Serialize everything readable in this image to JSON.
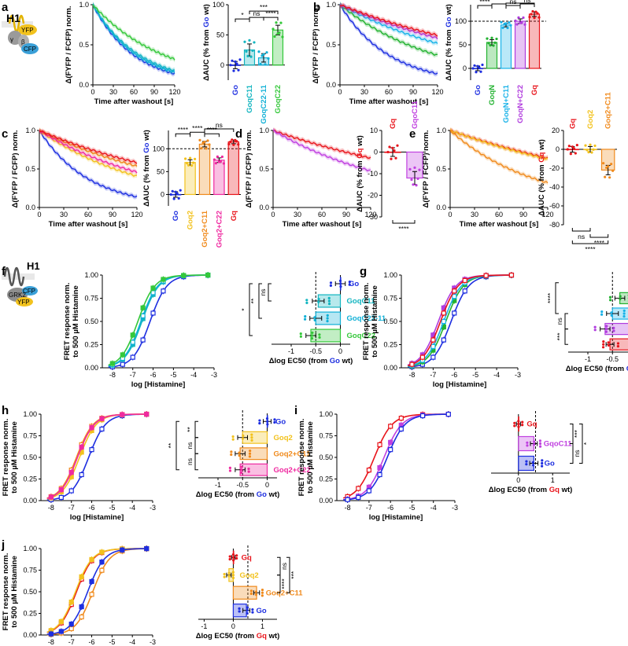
{
  "colors": {
    "Go": "#1d2ee0",
    "Gq": "#e8141b",
    "GoqN": "#22b230",
    "GoqC11": "#12b5c0",
    "GoqC22-11": "#0fb0d6",
    "GoqC22": "#34c83a",
    "GoqN+C11": "#18b2e8",
    "GoqN+C22": "#b03cde",
    "Goq2": "#f2c21d",
    "Goq2+C11": "#f08a1c",
    "Goq2+C22": "#ef2aa0",
    "GqoC11": "#c040e0"
  },
  "labels": {
    "time_xlabel": "Time after washout [s]",
    "fret_ylabel": "Δ(FYFP / FCFP) norm.",
    "auc_go": "ΔAUC (% from Go wt)",
    "auc_gq": "ΔAUC (% from Gq wt)",
    "dose_ylabel_1": "FRET response norm.",
    "dose_ylabel_2": "to 500 µM Histamine",
    "dose_xlabel": "log [Histamine]",
    "ec50_go": "Δlog EC50 (from Go wt)",
    "ec50_gq": "Δlog EC50 (from Gq wt)",
    "schematic_a": [
      "H1",
      "YFP",
      "β",
      "γ",
      "CFP"
    ],
    "schematic_f": [
      "H1",
      "GRK2",
      "YFP",
      "CFP"
    ]
  },
  "chart_data": [
    {
      "panel": "a",
      "type": "line",
      "xlabel": "Time after washout [s]",
      "ylabel": "Δ(FYFP / FCFP) norm.",
      "xlim": [
        0,
        120
      ],
      "ylim": [
        0,
        1.0
      ],
      "xticks": [
        0,
        30,
        60,
        90,
        120
      ],
      "yticks": [
        0.0,
        0.5,
        1.0
      ],
      "series": [
        {
          "name": "Go",
          "k": 0.0165
        },
        {
          "name": "GoqC11",
          "k": 0.0145
        },
        {
          "name": "GoqC22-11",
          "k": 0.0155
        },
        {
          "name": "GoqC22",
          "k": 0.0095
        }
      ]
    },
    {
      "panel": "a",
      "type": "bar",
      "ylabel": "ΔAUC (% from Go wt)",
      "ylim": [
        -25,
        100
      ],
      "yticks": [
        0,
        50,
        100
      ],
      "categories": [
        "Go",
        "GoqC11",
        "GoqC22-11",
        "GoqC22"
      ],
      "values": [
        0,
        25,
        12,
        58
      ],
      "errors": [
        6,
        10,
        7,
        8
      ],
      "brackets": [
        {
          "from": 0,
          "to": 1,
          "text": "*"
        },
        {
          "from": 1,
          "to": 2,
          "text": "ns"
        },
        {
          "from": 1,
          "to": 3,
          "text": "***"
        },
        {
          "from": 2,
          "to": 3,
          "text": "****"
        }
      ]
    },
    {
      "panel": "b",
      "type": "line",
      "xlabel": "Time after washout [s]",
      "ylabel": "Δ(FYFP / FCFP) norm.",
      "xlim": [
        0,
        120
      ],
      "ylim": [
        0,
        1.0
      ],
      "xticks": [
        0,
        30,
        60,
        90,
        120
      ],
      "yticks": [
        0.0,
        0.5,
        1.0
      ],
      "series": [
        {
          "name": "Go",
          "k": 0.0165
        },
        {
          "name": "GoqN",
          "k": 0.0083
        },
        {
          "name": "GoqN+C11",
          "k": 0.0055
        },
        {
          "name": "GoqN+C22",
          "k": 0.0045
        },
        {
          "name": "Gq",
          "k": 0.004
        }
      ]
    },
    {
      "panel": "b",
      "type": "bar",
      "ylabel": "ΔAUC (% from Go wt)",
      "ylim": [
        -25,
        135
      ],
      "yticks": [
        0,
        50,
        100
      ],
      "dashed": 100,
      "categories": [
        "Go",
        "GoqN",
        "GoqN+C11",
        "GoqN+C22",
        "Gq"
      ],
      "values": [
        0,
        55,
        92,
        100,
        115
      ],
      "errors": [
        5,
        6,
        4,
        5,
        5
      ],
      "brackets": [
        {
          "from": 0,
          "to": 1,
          "text": "****"
        },
        {
          "from": 1,
          "to": 2,
          "text": "****"
        },
        {
          "from": 2,
          "to": 3,
          "text": "ns"
        },
        {
          "from": 3,
          "to": 4,
          "text": "ns"
        },
        {
          "from": 2,
          "to": 4,
          "text": "***"
        }
      ]
    },
    {
      "panel": "c",
      "type": "line",
      "xlabel": "Time after washout [s]",
      "ylabel": "Δ(FYFP / FCFP) norm.",
      "xlim": [
        0,
        120
      ],
      "ylim": [
        0,
        1.0
      ],
      "xticks": [
        0,
        30,
        60,
        90,
        120
      ],
      "yticks": [
        0.0,
        0.5,
        1.0
      ],
      "series": [
        {
          "name": "Go",
          "k": 0.0165
        },
        {
          "name": "Goq2",
          "k": 0.0075
        },
        {
          "name": "Goq2+C11",
          "k": 0.0052
        },
        {
          "name": "Goq2+C22",
          "k": 0.0065
        },
        {
          "name": "Gq",
          "k": 0.0045
        }
      ]
    },
    {
      "panel": "c",
      "type": "bar",
      "ylabel": "ΔAUC (% from Go wt)",
      "ylim": [
        -25,
        140
      ],
      "yticks": [
        0,
        50,
        100
      ],
      "dashed": 100,
      "categories": [
        "Go",
        "Goq2",
        "Goq2+C11",
        "Goq2+C22",
        "Gq"
      ],
      "values": [
        0,
        70,
        110,
        75,
        115
      ],
      "errors": [
        6,
        6,
        6,
        5,
        4
      ],
      "brackets": [
        {
          "from": 0,
          "to": 1,
          "text": "****"
        },
        {
          "from": 1,
          "to": 2,
          "text": "****"
        },
        {
          "from": 2,
          "to": 3,
          "text": "****"
        },
        {
          "from": 2,
          "to": 4,
          "text": "ns"
        }
      ]
    },
    {
      "panel": "d",
      "type": "line",
      "xlabel": "Time after washout [s]",
      "ylabel": "Δ(FYFP / FCFP) norm.",
      "xlim": [
        0,
        120
      ],
      "ylim": [
        0,
        1.0
      ],
      "xticks": [
        0,
        30,
        60,
        90,
        120
      ],
      "yticks": [
        0.0,
        0.5,
        1.0
      ],
      "series": [
        {
          "name": "Gq",
          "k": 0.0037
        },
        {
          "name": "GqoC11",
          "k": 0.0062
        }
      ]
    },
    {
      "panel": "d",
      "type": "bar",
      "ylabel": "ΔAUC (% from Gq wt)",
      "ylim": [
        -30,
        10
      ],
      "yticks": [
        10,
        0,
        -10,
        -20,
        -30
      ],
      "categories": [
        "Gq",
        "GqoC11"
      ],
      "values": [
        0,
        -12
      ],
      "errors": [
        2,
        3
      ],
      "brackets": [
        {
          "from": 0,
          "to": 1,
          "text": "****",
          "below": true
        }
      ]
    },
    {
      "panel": "e",
      "type": "line",
      "xlabel": "Time after washout [s]",
      "ylabel": "Δ(FYFP / FCFP) norm.",
      "xlim": [
        0,
        120
      ],
      "ylim": [
        0,
        1.0
      ],
      "xticks": [
        0,
        30,
        60,
        90,
        120
      ],
      "yticks": [
        0.0,
        0.5,
        1.0
      ],
      "series": [
        {
          "name": "Gq",
          "k": 0.0037
        },
        {
          "name": "Goq2",
          "k": 0.0039
        },
        {
          "name": "Goq2+C11",
          "k": 0.0095
        }
      ]
    },
    {
      "panel": "e",
      "type": "bar",
      "ylabel": "ΔAUC (% from Gq wt)",
      "ylim": [
        -80,
        20
      ],
      "yticks": [
        20,
        0,
        -20,
        -40,
        -60,
        -80
      ],
      "categories": [
        "Gq",
        "Goq2",
        "Goq2+C11"
      ],
      "values": [
        0,
        0,
        -22
      ],
      "errors": [
        3,
        3,
        5
      ],
      "brackets": [
        {
          "from": 0,
          "to": 1,
          "text": "ns",
          "below": true
        },
        {
          "from": 1,
          "to": 2,
          "text": "****",
          "below": true
        },
        {
          "from": 0,
          "to": 2,
          "text": "****",
          "below": true
        }
      ]
    },
    {
      "panel": "f",
      "type": "line",
      "xlabel": "log [Histamine]",
      "ylabel": "FRET response norm. to 500 µM Histamine",
      "xlim": [
        -8.5,
        -3
      ],
      "ylim": [
        0,
        1.0
      ],
      "xticks": [
        -8,
        -7,
        -6,
        -5,
        -4,
        -3
      ],
      "yticks": [
        0.0,
        0.25,
        0.5,
        0.75,
        1.0
      ],
      "series": [
        {
          "name": "Go",
          "ec50": -6.15
        },
        {
          "name": "GoqC11",
          "ec50": -6.55
        },
        {
          "name": "GoqC22-11",
          "ec50": -6.6
        },
        {
          "name": "GoqC22",
          "ec50": -6.75
        }
      ]
    },
    {
      "panel": "f",
      "type": "bar",
      "orientation": "horizontal",
      "xlabel": "Δlog EC50 (from Go wt)",
      "xlim": [
        -1.4,
        0.2
      ],
      "xticks": [
        -1,
        -0.5,
        0
      ],
      "dashed": -0.5,
      "categories": [
        "Go",
        "GoqC11",
        "GoqC22-11",
        "GoqC22"
      ],
      "values": [
        0,
        -0.45,
        -0.5,
        -0.6
      ],
      "errors": [
        0.1,
        0.12,
        0.12,
        0.1
      ],
      "brackets": [
        {
          "from": 0,
          "to": 1,
          "text": "ns"
        },
        {
          "from": 0,
          "to": 2,
          "text": "**"
        },
        {
          "from": 0,
          "to": 3,
          "text": "*"
        }
      ]
    },
    {
      "panel": "g",
      "type": "line",
      "xlabel": "log [Histamine]",
      "ylabel": "FRET response norm. to 500 µM Histamine",
      "xlim": [
        -8.5,
        -3
      ],
      "ylim": [
        0,
        1.0
      ],
      "xticks": [
        -8,
        -7,
        -6,
        -5,
        -4,
        -3
      ],
      "yticks": [
        0.0,
        0.25,
        0.5,
        0.75,
        1.0
      ],
      "series": [
        {
          "name": "Go",
          "ec50": -6.15
        },
        {
          "name": "GoqN",
          "ec50": -6.4
        },
        {
          "name": "GoqN+C11",
          "ec50": -6.5
        },
        {
          "name": "GoqN+C22",
          "ec50": -6.75
        },
        {
          "name": "Gq",
          "ec50": -6.65
        }
      ]
    },
    {
      "panel": "g",
      "type": "bar",
      "orientation": "horizontal",
      "xlabel": "Δlog EC50 (from Go wt)",
      "xlim": [
        -1.4,
        0.2
      ],
      "xticks": [
        -1,
        -0.5,
        0
      ],
      "dashed": -0.5,
      "categories": [
        "Go",
        "GoqN",
        "GoqN+C11",
        "GoqN+C22",
        "Gq"
      ],
      "values": [
        0,
        -0.35,
        -0.5,
        -0.65,
        -0.55
      ],
      "errors": [
        0.08,
        0.1,
        0.12,
        0.1,
        0.08
      ],
      "brackets": [
        {
          "from": 0,
          "to": 2,
          "text": "****"
        },
        {
          "from": 2,
          "to": 3,
          "text": "ns"
        },
        {
          "from": 3,
          "to": 4,
          "text": "***"
        }
      ]
    },
    {
      "panel": "h",
      "type": "line",
      "xlabel": "log [Histamine]",
      "ylabel": "FRET response norm. to 500 µM Histamine",
      "xlim": [
        -8.5,
        -3
      ],
      "ylim": [
        0,
        1.0
      ],
      "xticks": [
        -8,
        -7,
        -6,
        -5,
        -4,
        -3
      ],
      "yticks": [
        0.0,
        0.25,
        0.5,
        0.75,
        1.0
      ],
      "series": [
        {
          "name": "Go",
          "ec50": -6.15
        },
        {
          "name": "Goq2",
          "ec50": -6.6
        },
        {
          "name": "Goq2+C11",
          "ec50": -6.75
        },
        {
          "name": "Goq2+C22",
          "ec50": -6.7
        }
      ]
    },
    {
      "panel": "h",
      "type": "bar",
      "orientation": "horizontal",
      "xlabel": "Δlog EC50 (from Go wt)",
      "xlim": [
        -1.4,
        0.2
      ],
      "xticks": [
        -1,
        -0.5,
        0
      ],
      "dashed": -0.5,
      "categories": [
        "Go",
        "Goq2",
        "Goq2+C11",
        "Goq2+C22"
      ],
      "values": [
        0,
        -0.5,
        -0.55,
        -0.55
      ],
      "errors": [
        0.08,
        0.1,
        0.1,
        0.1
      ],
      "brackets": [
        {
          "from": 0,
          "to": 1,
          "text": "**"
        },
        {
          "from": 1,
          "to": 2,
          "text": "ns"
        },
        {
          "from": 2,
          "to": 3,
          "text": "ns"
        },
        {
          "from": 0,
          "to": 3,
          "text": "**"
        }
      ]
    },
    {
      "panel": "i",
      "type": "line",
      "xlabel": "log [Histamine]",
      "ylabel": "FRET response norm. to 500 µM Histamine",
      "xlim": [
        -8.5,
        -3
      ],
      "ylim": [
        0,
        1.0
      ],
      "xticks": [
        -8,
        -7,
        -6,
        -5,
        -4,
        -3
      ],
      "yticks": [
        0.0,
        0.25,
        0.5,
        0.75,
        1.0
      ],
      "series": [
        {
          "name": "Gq",
          "ec50": -6.75
        },
        {
          "name": "GqoC11",
          "ec50": -6.3
        },
        {
          "name": "Go",
          "ec50": -6.15
        }
      ]
    },
    {
      "panel": "i",
      "type": "bar",
      "orientation": "horizontal",
      "xlabel": "Δlog EC50 (from Gq wt)",
      "xlim": [
        -0.8,
        1.5
      ],
      "xticks": [
        0,
        1
      ],
      "dashed": 0.5,
      "categories": [
        "Gq",
        "GqoC11",
        "Go"
      ],
      "values": [
        0,
        0.45,
        0.45
      ],
      "errors": [
        0.06,
        0.1,
        0.12
      ],
      "brackets": [
        {
          "from": 0,
          "to": 1,
          "text": "***"
        },
        {
          "from": 1,
          "to": 2,
          "text": "ns"
        },
        {
          "from": 0,
          "to": 2,
          "text": "*"
        }
      ]
    },
    {
      "panel": "j",
      "type": "line",
      "xlabel": "log [Histamine]",
      "ylabel": "FRET response norm. to 500 µM Histamine",
      "xlim": [
        -8.5,
        -3
      ],
      "ylim": [
        0,
        1.0
      ],
      "xticks": [
        -8,
        -7,
        -6,
        -5,
        -4,
        -3
      ],
      "yticks": [
        0.0,
        0.25,
        0.5,
        0.75,
        1.0
      ],
      "series": [
        {
          "name": "Gq",
          "ec50": -6.75
        },
        {
          "name": "Goq2",
          "ec50": -6.8
        },
        {
          "name": "Goq2+C11",
          "ec50": -5.95
        },
        {
          "name": "Go",
          "ec50": -6.2
        }
      ]
    },
    {
      "panel": "j",
      "type": "bar",
      "orientation": "horizontal",
      "xlabel": "Δlog EC50 (from Gq wt)",
      "xlim": [
        -1.2,
        1.5
      ],
      "xticks": [
        -1,
        0,
        1
      ],
      "dashed": 0.5,
      "categories": [
        "Gq",
        "Goq2",
        "Goq2+C11",
        "Go"
      ],
      "values": [
        0,
        -0.15,
        0.8,
        0.45
      ],
      "errors": [
        0.06,
        0.08,
        0.1,
        0.12
      ],
      "brackets": [
        {
          "from": 0,
          "to": 1,
          "text": "ns"
        },
        {
          "from": 1,
          "to": 2,
          "text": "****"
        },
        {
          "from": 0,
          "to": 2,
          "text": "***"
        }
      ]
    }
  ]
}
